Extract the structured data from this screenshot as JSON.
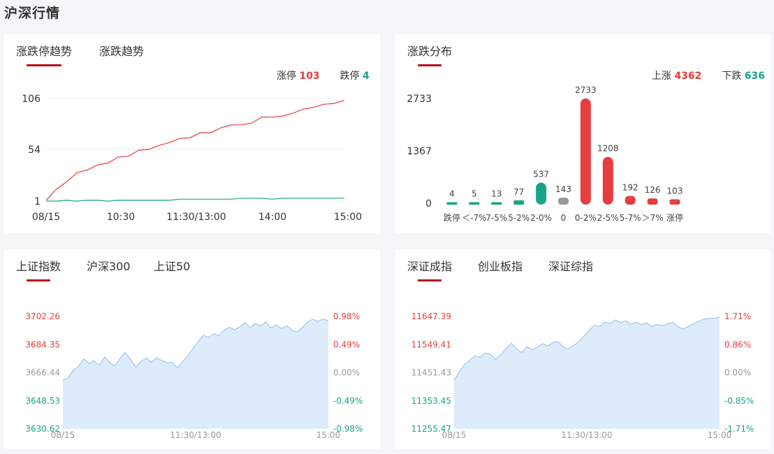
{
  "page": {
    "title": "沪深行情"
  },
  "limit_panel": {
    "tabs": [
      "涨跌停趋势",
      "涨跌趋势"
    ],
    "active_tab": 0,
    "limit_up_label": "涨停",
    "limit_up_value": "103",
    "limit_down_label": "跌停",
    "limit_down_value": "4",
    "chart_data": {
      "type": "line",
      "y_ticks": [
        "106",
        "54",
        "1"
      ],
      "x_ticks": [
        "08/15",
        "10:30",
        "11:30/13:00",
        "14:00",
        "15:00"
      ],
      "ylim": [
        1,
        106
      ],
      "series": [
        {
          "name": "涨停",
          "color": "#e63e3e",
          "values": [
            3,
            12,
            22,
            29,
            34,
            37,
            41,
            45,
            48,
            52,
            55,
            57,
            62,
            64,
            67,
            70,
            72,
            75,
            80,
            78,
            82,
            86,
            88,
            87,
            92,
            94,
            98,
            99,
            102,
            103
          ]
        },
        {
          "name": "跌停",
          "color": "#1aa389",
          "values": [
            1,
            1,
            2,
            1,
            2,
            2,
            1,
            2,
            2,
            2,
            2,
            2,
            2,
            3,
            3,
            3,
            3,
            3,
            3,
            4,
            4,
            4,
            3,
            4,
            4,
            4,
            4,
            4,
            4,
            4
          ]
        }
      ]
    }
  },
  "dist_panel": {
    "tabs": [
      "涨跌分布"
    ],
    "active_tab": 0,
    "up_label": "上涨",
    "up_value": "4362",
    "down_label": "下跌",
    "down_value": "636",
    "chart_data": {
      "type": "bar",
      "y_ticks": [
        "2733",
        "1367",
        "0"
      ],
      "ylim": [
        0,
        2733
      ],
      "categories": [
        "跌停",
        "＜-7%",
        "7-5%",
        "5-2%",
        "2-0%",
        "0",
        "0-2%",
        "2-5%",
        "5-7%",
        "＞7%",
        "涨停"
      ],
      "values": [
        4,
        5,
        13,
        77,
        537,
        143,
        2733,
        1208,
        192,
        126,
        103
      ],
      "value_labels": [
        "4",
        "5",
        "13",
        "77",
        "537",
        "143",
        "2733",
        "1208",
        "192",
        "126",
        "103"
      ],
      "colors": [
        "#1aa389",
        "#1aa389",
        "#1aa389",
        "#1aa389",
        "#1aa389",
        "#999999",
        "#e63e3e",
        "#e63e3e",
        "#e63e3e",
        "#e63e3e",
        "#e63e3e"
      ]
    }
  },
  "sh_panel": {
    "tabs": [
      "上证指数",
      "沪深300",
      "上证50"
    ],
    "active_tab": 0,
    "chart_data": {
      "type": "area",
      "left_ticks": [
        "3702.26",
        "3684.35",
        "3666.44",
        "3648.53",
        "3630.62"
      ],
      "right_ticks": [
        "0.98%",
        "0.49%",
        "0.00%",
        "-0.49%",
        "-0.98%"
      ],
      "x_ticks": [
        "08/15",
        "11:30/13:00",
        "15:00"
      ],
      "ylim": [
        3630.62,
        3702.26
      ],
      "values": [
        3661.5,
        3663.2,
        3667.8,
        3670.5,
        3675.1,
        3672.3,
        3674.0,
        3671.2,
        3676.4,
        3672.8,
        3670.6,
        3675.6,
        3679.4,
        3674.8,
        3670.1,
        3673.5,
        3675.8,
        3673.1,
        3675.9,
        3674.2,
        3672.7,
        3673.0,
        3669.6,
        3673.4,
        3677.2,
        3681.8,
        3686.1,
        3690.2,
        3688.8,
        3691.4,
        3690.0,
        3693.6,
        3695.3,
        3693.8,
        3695.6,
        3698.4,
        3695.1,
        3697.8,
        3696.0,
        3698.7,
        3694.9,
        3696.9,
        3694.5,
        3696.4,
        3693.6,
        3692.1,
        3695.2,
        3698.6,
        3700.4,
        3699.1,
        3700.5,
        3699.6
      ]
    }
  },
  "sz_panel": {
    "tabs": [
      "深证成指",
      "创业板指",
      "深证综指"
    ],
    "active_tab": 0,
    "chart_data": {
      "type": "area",
      "left_ticks": [
        "11647.39",
        "11549.41",
        "11451.43",
        "11353.45",
        "11255.47"
      ],
      "right_ticks": [
        "1.71%",
        "0.86%",
        "0.00%",
        "-0.85%",
        "-1.71%"
      ],
      "x_ticks": [
        "08/15",
        "11:30/13:00",
        "15:00"
      ],
      "ylim": [
        11255.47,
        11647.39
      ],
      "values": [
        11425,
        11455,
        11480,
        11494,
        11510,
        11505,
        11520,
        11515,
        11498,
        11514,
        11536,
        11554,
        11534,
        11522,
        11542,
        11531,
        11540,
        11553,
        11544,
        11556,
        11560,
        11541,
        11534,
        11546,
        11561,
        11580,
        11600,
        11617,
        11612,
        11628,
        11623,
        11635,
        11626,
        11632,
        11620,
        11627,
        11619,
        11625,
        11612,
        11620,
        11615,
        11622,
        11626,
        11612,
        11603,
        11612,
        11622,
        11630,
        11638,
        11641,
        11642,
        11644
      ]
    }
  }
}
